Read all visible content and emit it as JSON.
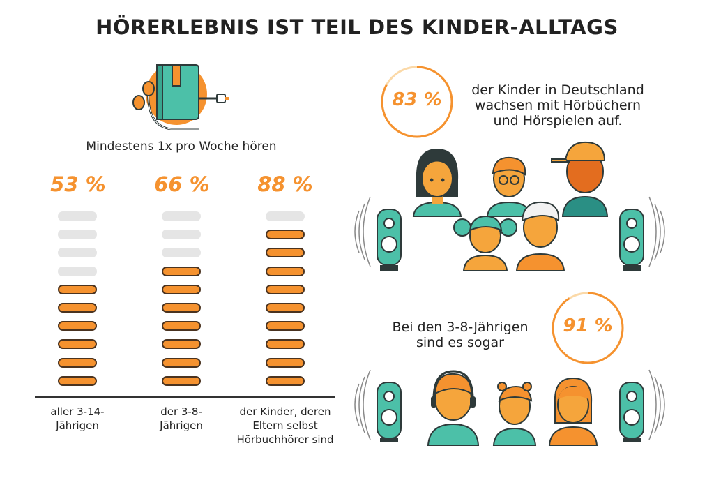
{
  "title": "HÖRERLEBNIS IST TEIL DES KINDER-ALLTAGS",
  "subtitle": "Mindestens 1x pro Woche hören",
  "chart_data": {
    "type": "bar",
    "title": "Mindestens 1x pro Woche hören",
    "categories": [
      "aller 3-14-Jährigen",
      "der 3-8-Jährigen",
      "der Kinder, deren Eltern selbst Hörbuchhörer sind"
    ],
    "values": [
      53,
      66,
      88
    ],
    "value_labels": [
      "53 %",
      "66 %",
      "88 %"
    ],
    "unit": "%",
    "ylim": [
      0,
      100
    ],
    "segments_total": 10,
    "segments_filled": [
      6,
      7,
      9
    ],
    "grid": false,
    "colors": {
      "filled": "#f5922f",
      "empty": "#e5e5e5",
      "outline": "#4a3320"
    }
  },
  "captions": [
    [
      "aller 3-14-",
      "Jährigen"
    ],
    [
      "der 3-8-",
      "Jährigen"
    ],
    [
      "der Kinder, deren",
      "Eltern selbst",
      "Hörbuchhörer sind"
    ]
  ],
  "stat1": {
    "value": "83 %",
    "fraction": 0.83,
    "lines": [
      "der Kinder in Deutschland",
      "wachsen mit Hörbüchern",
      "und Hörspielen auf."
    ]
  },
  "stat2": {
    "value": "91 %",
    "fraction": 0.91,
    "lines": [
      "Bei den 3-8-Jährigen",
      "sind es sogar"
    ]
  },
  "icons": {
    "book": "book-with-headphones-icon",
    "speaker": "speaker-icon",
    "sound_waves": "sound-waves-icon",
    "child": "child-avatar-icon"
  },
  "colors": {
    "orange": "#f5922f",
    "teal": "#4cc0a8",
    "dark": "#2e3a3a",
    "light_orange": "#fbd9a8"
  }
}
